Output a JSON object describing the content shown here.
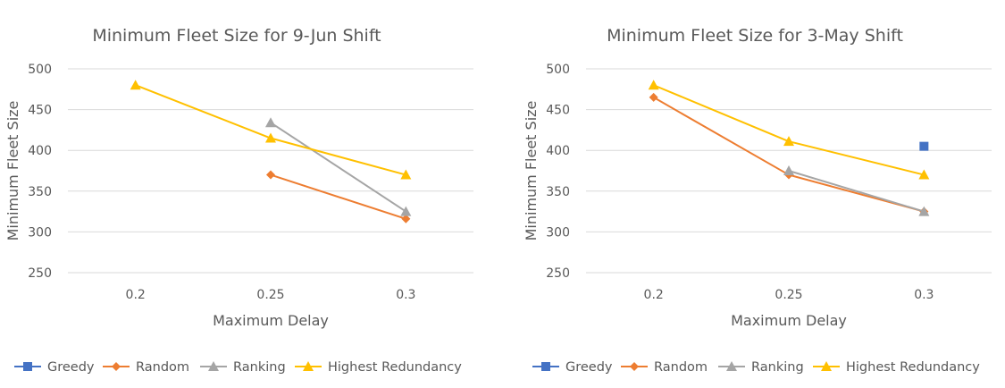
{
  "chart_data": [
    {
      "type": "line",
      "title": "Minimum Fleet Size for 9-Jun Shift",
      "xlabel": "Maximum Delay",
      "ylabel": "Minimum Fleet Size",
      "categories": [
        "0.2",
        "0.25",
        "0.3"
      ],
      "ylim": [
        250,
        500
      ],
      "yticks": [
        500,
        450,
        400,
        350,
        300,
        250
      ],
      "grid": true,
      "legend_position": "bottom",
      "series": [
        {
          "name": "Greedy",
          "values": [
            null,
            null,
            null
          ],
          "color": "#4472c4",
          "marker": "square"
        },
        {
          "name": "Random",
          "values": [
            null,
            370,
            316
          ],
          "color": "#ed7d31",
          "marker": "diamond"
        },
        {
          "name": "Ranking",
          "values": [
            null,
            434,
            325
          ],
          "color": "#a5a5a5",
          "marker": "triangle"
        },
        {
          "name": "Highest Redundancy",
          "values": [
            480,
            415,
            370
          ],
          "color": "#ffc000",
          "marker": "triangle"
        }
      ]
    },
    {
      "type": "line",
      "title": "Minimum Fleet Size for 3-May Shift",
      "xlabel": "Maximum Delay",
      "ylabel": "Minimum Fleet Size",
      "categories": [
        "0.2",
        "0.25",
        "0.3"
      ],
      "ylim": [
        250,
        500
      ],
      "yticks": [
        500,
        450,
        400,
        350,
        300,
        250
      ],
      "grid": true,
      "legend_position": "bottom",
      "series": [
        {
          "name": "Greedy",
          "values": [
            null,
            null,
            405
          ],
          "color": "#4472c4",
          "marker": "square"
        },
        {
          "name": "Random",
          "values": [
            465,
            370,
            325
          ],
          "color": "#ed7d31",
          "marker": "diamond"
        },
        {
          "name": "Ranking",
          "values": [
            null,
            375,
            325
          ],
          "color": "#a5a5a5",
          "marker": "triangle"
        },
        {
          "name": "Highest Redundancy",
          "values": [
            480,
            411,
            370
          ],
          "color": "#ffc000",
          "marker": "triangle"
        }
      ]
    }
  ]
}
